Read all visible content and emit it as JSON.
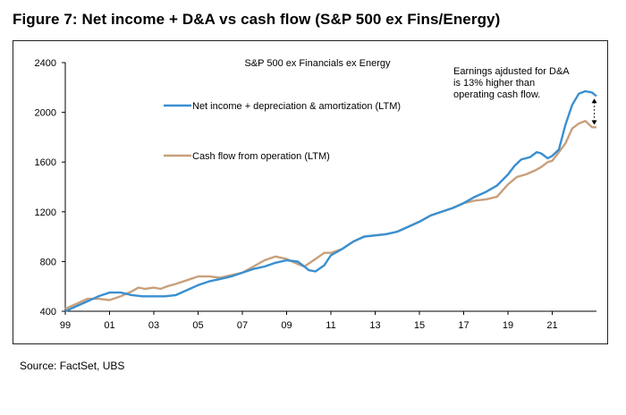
{
  "figure": {
    "title": "Figure 7: Net income + D&A vs cash flow (S&P 500 ex Fins/Energy)",
    "source": "Source: FactSet, UBS"
  },
  "colors": {
    "net_income_line": "#3a8fd0",
    "cash_flow_line": "#c8a07c",
    "axis": "#000000",
    "text": "#000000"
  },
  "chart_data": {
    "type": "line",
    "title": "S&P 500 ex Financials ex Energy",
    "xlabel": "",
    "ylabel": "",
    "x_ticks": [
      "99",
      "01",
      "03",
      "05",
      "07",
      "09",
      "11",
      "13",
      "15",
      "17",
      "19",
      "21"
    ],
    "x_tick_values": [
      1999,
      2001,
      2003,
      2005,
      2007,
      2009,
      2011,
      2013,
      2015,
      2017,
      2019,
      2021
    ],
    "xlim": [
      1999,
      2023
    ],
    "ylim": [
      400,
      2400
    ],
    "y_ticks": [
      400,
      800,
      1200,
      1600,
      2000,
      2400
    ],
    "grid": false,
    "legend_placement": "inline-left",
    "annotation": {
      "lines": [
        "Earnings ajdusted for D&A",
        "is 13% higher than",
        "operating cash flow."
      ],
      "arrow": "double-dotted-vertical"
    },
    "series": [
      {
        "name": "Net income + depreciation & amortization (LTM)",
        "points": [
          [
            1999.0,
            400
          ],
          [
            1999.5,
            440
          ],
          [
            2000.0,
            480
          ],
          [
            2000.5,
            520
          ],
          [
            2001.0,
            550
          ],
          [
            2001.5,
            550
          ],
          [
            2002.0,
            530
          ],
          [
            2002.5,
            520
          ],
          [
            2003.0,
            520
          ],
          [
            2003.5,
            520
          ],
          [
            2004.0,
            530
          ],
          [
            2004.5,
            570
          ],
          [
            2005.0,
            610
          ],
          [
            2005.5,
            640
          ],
          [
            2006.0,
            660
          ],
          [
            2006.5,
            680
          ],
          [
            2007.0,
            710
          ],
          [
            2007.5,
            740
          ],
          [
            2008.0,
            760
          ],
          [
            2008.5,
            790
          ],
          [
            2009.0,
            810
          ],
          [
            2009.5,
            800
          ],
          [
            2009.8,
            760
          ],
          [
            2010.0,
            730
          ],
          [
            2010.3,
            720
          ],
          [
            2010.7,
            770
          ],
          [
            2011.0,
            850
          ],
          [
            2011.5,
            900
          ],
          [
            2012.0,
            960
          ],
          [
            2012.5,
            1000
          ],
          [
            2013.0,
            1010
          ],
          [
            2013.5,
            1020
          ],
          [
            2014.0,
            1040
          ],
          [
            2014.5,
            1080
          ],
          [
            2015.0,
            1120
          ],
          [
            2015.5,
            1170
          ],
          [
            2016.0,
            1200
          ],
          [
            2016.5,
            1230
          ],
          [
            2017.0,
            1270
          ],
          [
            2017.5,
            1320
          ],
          [
            2018.0,
            1360
          ],
          [
            2018.5,
            1410
          ],
          [
            2019.0,
            1500
          ],
          [
            2019.3,
            1570
          ],
          [
            2019.6,
            1620
          ],
          [
            2020.0,
            1640
          ],
          [
            2020.3,
            1680
          ],
          [
            2020.5,
            1670
          ],
          [
            2020.8,
            1630
          ],
          [
            2021.0,
            1650
          ],
          [
            2021.3,
            1700
          ],
          [
            2021.6,
            1900
          ],
          [
            2021.9,
            2060
          ],
          [
            2022.2,
            2150
          ],
          [
            2022.5,
            2170
          ],
          [
            2022.8,
            2160
          ],
          [
            2023.0,
            2130
          ]
        ]
      },
      {
        "name": "Cash flow from operation (LTM)",
        "points": [
          [
            1999.0,
            420
          ],
          [
            1999.5,
            460
          ],
          [
            2000.0,
            500
          ],
          [
            2000.5,
            500
          ],
          [
            2001.0,
            490
          ],
          [
            2001.5,
            520
          ],
          [
            2002.0,
            560
          ],
          [
            2002.3,
            590
          ],
          [
            2002.6,
            580
          ],
          [
            2003.0,
            590
          ],
          [
            2003.3,
            580
          ],
          [
            2003.6,
            600
          ],
          [
            2004.0,
            620
          ],
          [
            2004.5,
            650
          ],
          [
            2005.0,
            680
          ],
          [
            2005.5,
            680
          ],
          [
            2006.0,
            670
          ],
          [
            2006.5,
            690
          ],
          [
            2007.0,
            710
          ],
          [
            2007.5,
            760
          ],
          [
            2008.0,
            810
          ],
          [
            2008.5,
            840
          ],
          [
            2009.0,
            820
          ],
          [
            2009.5,
            780
          ],
          [
            2009.8,
            760
          ],
          [
            2010.3,
            820
          ],
          [
            2010.7,
            870
          ],
          [
            2011.0,
            870
          ],
          [
            2011.5,
            900
          ],
          [
            2012.0,
            960
          ],
          [
            2012.5,
            1000
          ],
          [
            2013.0,
            1010
          ],
          [
            2013.5,
            1020
          ],
          [
            2014.0,
            1040
          ],
          [
            2014.5,
            1080
          ],
          [
            2015.0,
            1120
          ],
          [
            2015.5,
            1170
          ],
          [
            2016.0,
            1200
          ],
          [
            2016.5,
            1230
          ],
          [
            2017.0,
            1270
          ],
          [
            2017.5,
            1290
          ],
          [
            2018.0,
            1300
          ],
          [
            2018.5,
            1320
          ],
          [
            2018.8,
            1380
          ],
          [
            2019.0,
            1420
          ],
          [
            2019.4,
            1480
          ],
          [
            2019.8,
            1500
          ],
          [
            2020.2,
            1530
          ],
          [
            2020.5,
            1560
          ],
          [
            2020.8,
            1600
          ],
          [
            2021.0,
            1610
          ],
          [
            2021.3,
            1680
          ],
          [
            2021.6,
            1750
          ],
          [
            2021.9,
            1870
          ],
          [
            2022.2,
            1910
          ],
          [
            2022.5,
            1930
          ],
          [
            2022.8,
            1880
          ],
          [
            2023.0,
            1880
          ]
        ]
      }
    ]
  }
}
